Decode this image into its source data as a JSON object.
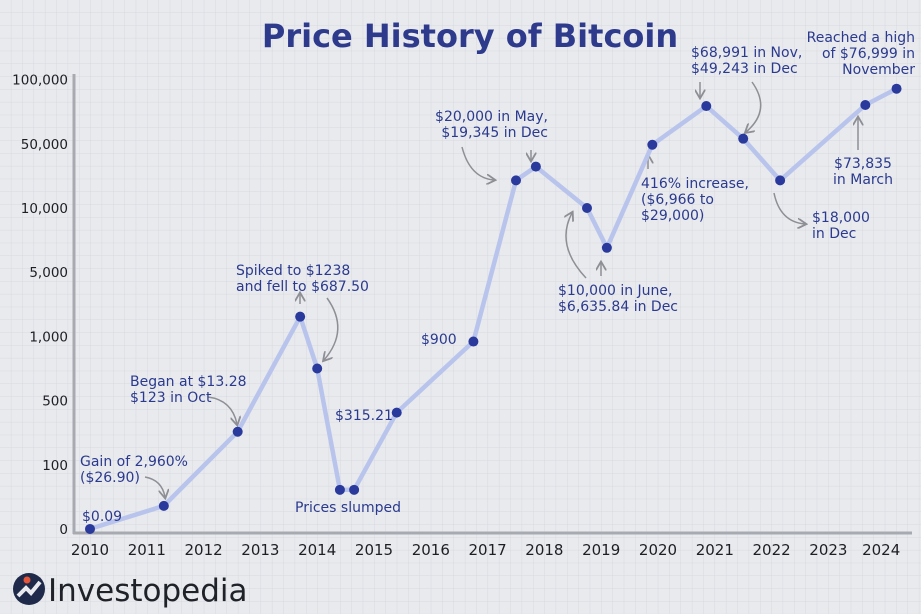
{
  "chart_data": {
    "type": "line",
    "title": "Price History of Bitcoin",
    "xlabel": "",
    "ylabel": "",
    "x_ticks": [
      "2010",
      "2011",
      "2012",
      "2013",
      "2014",
      "2015",
      "2016",
      "2017",
      "2018",
      "2019",
      "2020",
      "2021",
      "2022",
      "2023",
      "2024"
    ],
    "y_ticks": [
      "0",
      "100",
      "500",
      "1,000",
      "5,000",
      "10,000",
      "50,000",
      "100,000"
    ],
    "y_tick_values": [
      0,
      100,
      500,
      1000,
      5000,
      10000,
      50000,
      100000
    ],
    "y_scale": "categorical-spaced (uneven ticks, equal spacing)",
    "grid": true,
    "series": [
      {
        "points": [
          {
            "x": 2010.0,
            "y": 0.09
          },
          {
            "x": 2011.3,
            "y": 36
          },
          {
            "x": 2012.6,
            "y": 306
          },
          {
            "x": 2013.7,
            "y": 2230
          },
          {
            "x": 2014.0,
            "y": 750
          },
          {
            "x": 2014.4,
            "y": 61
          },
          {
            "x": 2014.65,
            "y": 61
          },
          {
            "x": 2015.4,
            "y": 425
          },
          {
            "x": 2016.75,
            "y": 960
          },
          {
            "x": 2017.5,
            "y": 27200
          },
          {
            "x": 2017.85,
            "y": 35800
          },
          {
            "x": 2018.75,
            "y": 10000
          },
          {
            "x": 2019.1,
            "y": 6900
          },
          {
            "x": 2019.9,
            "y": 49400
          },
          {
            "x": 2020.85,
            "y": 79400
          },
          {
            "x": 2021.5,
            "y": 54000
          },
          {
            "x": 2022.15,
            "y": 27200
          },
          {
            "x": 2023.65,
            "y": 80200
          },
          {
            "x": 2024.2,
            "y": 92900
          }
        ]
      }
    ],
    "annotations": {
      "a0": [
        "$0.09"
      ],
      "a1": [
        "Gain of 2,960%",
        "($26.90)"
      ],
      "a2": [
        "Began at $13.28",
        "$123 in Oct"
      ],
      "a3": [
        "Spiked to $1238",
        "and fell to $687.50"
      ],
      "a4": [
        "Prices slumped"
      ],
      "a5": [
        "$315.21"
      ],
      "a6": [
        "$900"
      ],
      "a7": [
        "$20,000 in May,",
        "$19,345 in Dec"
      ],
      "a8": [
        "$10,000 in June,",
        "$6,635.84 in Dec"
      ],
      "a9": [
        "416% increase,",
        "($6,966 to",
        "$29,000)"
      ],
      "a10": [
        "$68,991 in Nov,",
        "$49,243 in Dec"
      ],
      "a11": [
        "Reached a high",
        "of $76,999 in",
        "November"
      ],
      "a12": [
        "$73,835",
        "in March"
      ],
      "a13": [
        "$18,000",
        "in Dec"
      ]
    },
    "colors": {
      "line": "#b9c4ec",
      "marker": "#2a3a9c",
      "title": "#2e3a8c",
      "annotation": "#2b3a8e",
      "arrow": "#8d8f95",
      "axis": "#a7aab1"
    }
  },
  "brand": {
    "logo_text": "Investopedia"
  }
}
